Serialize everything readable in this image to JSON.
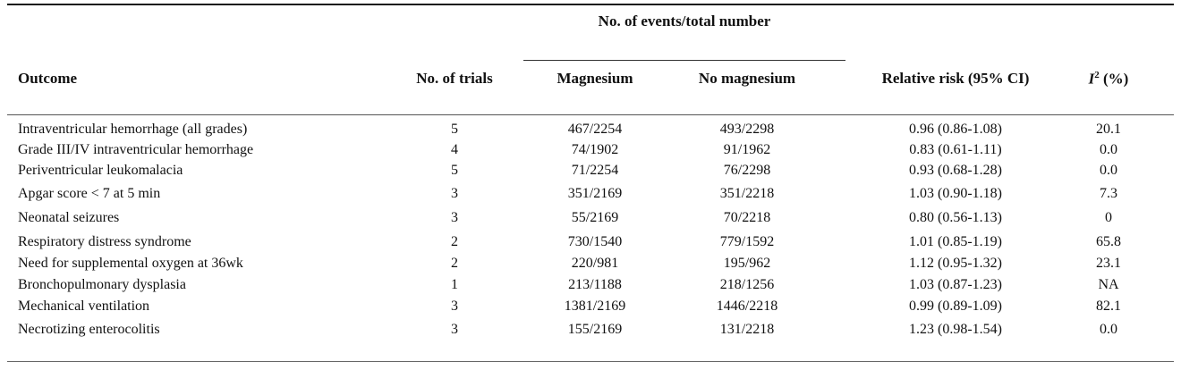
{
  "table": {
    "group_header": "No. of events/total number",
    "columns": {
      "outcome": "Outcome",
      "trials": "No. of trials",
      "magnesium": "Magnesium",
      "no_magnesium": "No magnesium",
      "relative_risk": "Relative risk (95% CI)",
      "i2_symbol": "I",
      "i2_superscript": "2",
      "i2_unit": " (%)"
    },
    "rows": [
      {
        "outcome": "Intraventricular hemorrhage (all grades)",
        "trials": "5",
        "magnesium": "467/2254",
        "no_magnesium": "493/2298",
        "relative_risk": "0.96 (0.86-1.08)",
        "i2": "20.1"
      },
      {
        "outcome": "Grade III/IV intraventricular hemorrhage",
        "trials": "4",
        "magnesium": "74/1902",
        "no_magnesium": "91/1962",
        "relative_risk": "0.83 (0.61-1.11)",
        "i2": "0.0"
      },
      {
        "outcome": "Periventricular leukomalacia",
        "trials": "5",
        "magnesium": "71/2254",
        "no_magnesium": "76/2298",
        "relative_risk": "0.93 (0.68-1.28)",
        "i2": "0.0"
      },
      {
        "outcome": "Apgar score < 7 at 5 min",
        "trials": "3",
        "magnesium": "351/2169",
        "no_magnesium": "351/2218",
        "relative_risk": "1.03 (0.90-1.18)",
        "i2": "7.3"
      },
      {
        "outcome": "Neonatal seizures",
        "trials": "3",
        "magnesium": "55/2169",
        "no_magnesium": "70/2218",
        "relative_risk": "0.80 (0.56-1.13)",
        "i2": "0"
      },
      {
        "outcome": "Respiratory distress syndrome",
        "trials": "2",
        "magnesium": "730/1540",
        "no_magnesium": "779/1592",
        "relative_risk": "1.01 (0.85-1.19)",
        "i2": "65.8"
      },
      {
        "outcome": "Need for supplemental oxygen at 36wk",
        "trials": "2",
        "magnesium": "220/981",
        "no_magnesium": "195/962",
        "relative_risk": "1.12 (0.95-1.32)",
        "i2": "23.1"
      },
      {
        "outcome": "Bronchopulmonary dysplasia",
        "trials": "1",
        "magnesium": "213/1188",
        "no_magnesium": "218/1256",
        "relative_risk": "1.03 (0.87-1.23)",
        "i2": "NA"
      },
      {
        "outcome": "Mechanical ventilation",
        "trials": "3",
        "magnesium": "1381/2169",
        "no_magnesium": "1446/2218",
        "relative_risk": "0.99 (0.89-1.09)",
        "i2": "82.1"
      },
      {
        "outcome": "Necrotizing enterocolitis",
        "trials": "3",
        "magnesium": "155/2169",
        "no_magnesium": "131/2218",
        "relative_risk": "1.23 (0.98-1.54)",
        "i2": "0.0"
      }
    ]
  }
}
